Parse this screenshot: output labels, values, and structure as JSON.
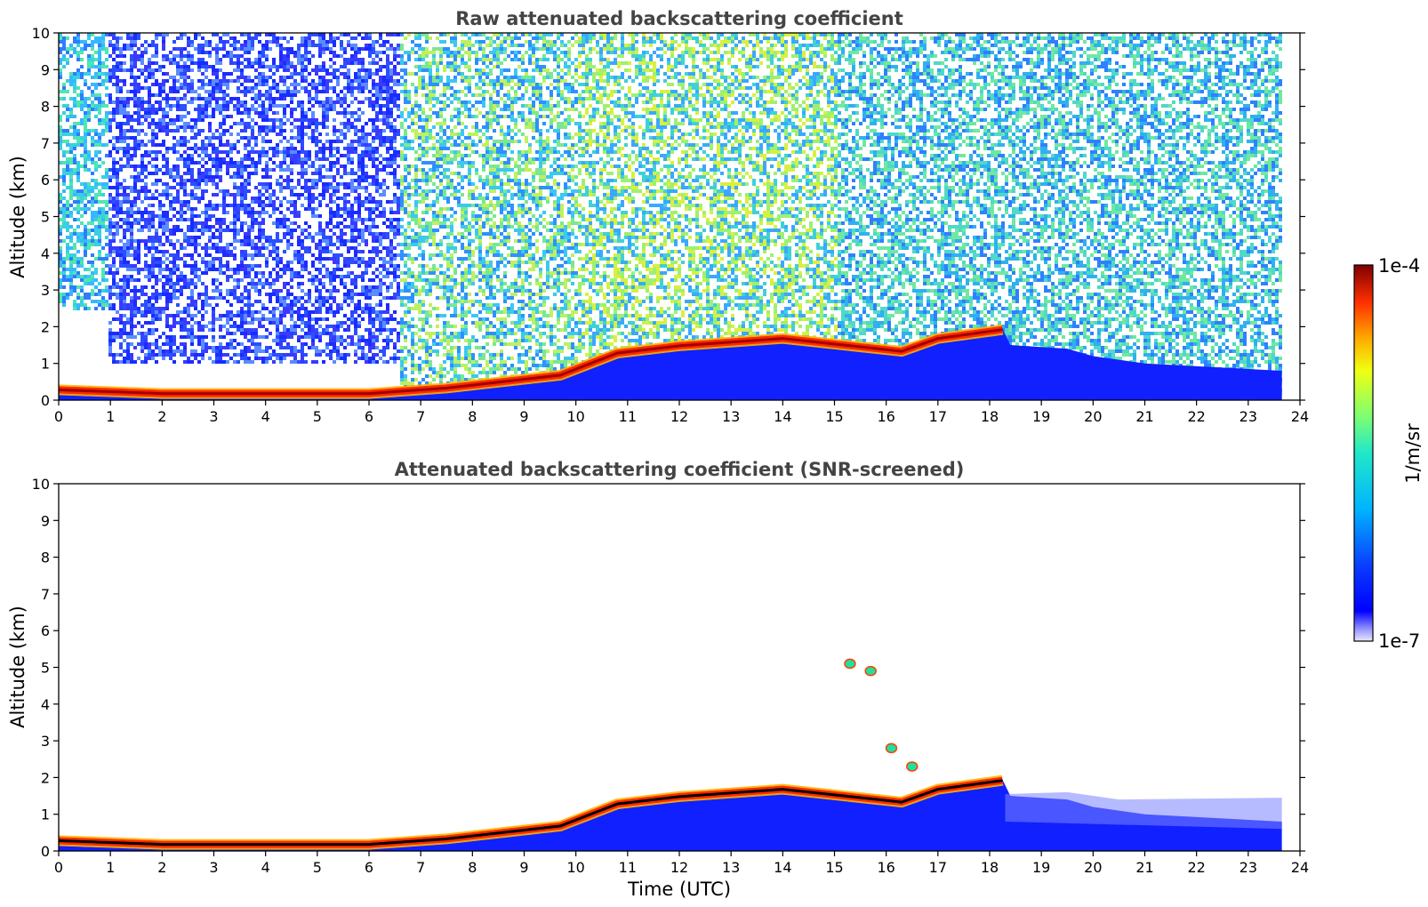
{
  "chart_data": [
    {
      "type": "heatmap",
      "title": "Raw attenuated backscattering coefficient",
      "xlabel": "",
      "ylabel": "Altitude (km)",
      "xlim": [
        0,
        24
      ],
      "ylim": [
        0,
        10
      ],
      "xticks": [
        0,
        1,
        2,
        3,
        4,
        5,
        6,
        7,
        8,
        9,
        10,
        11,
        12,
        13,
        14,
        15,
        16,
        17,
        18,
        19,
        20,
        21,
        22,
        23,
        24
      ],
      "yticks": [
        0,
        1,
        2,
        3,
        4,
        5,
        6,
        7,
        8,
        9,
        10
      ],
      "data_end_time": 23.65,
      "layer_top_km": [
        {
          "t": 0,
          "h": 0.3
        },
        {
          "t": 2,
          "h": 0.2
        },
        {
          "t": 6,
          "h": 0.2
        },
        {
          "t": 7.5,
          "h": 0.35
        },
        {
          "t": 9.7,
          "h": 0.7
        },
        {
          "t": 10.8,
          "h": 1.3
        },
        {
          "t": 12,
          "h": 1.5
        },
        {
          "t": 14,
          "h": 1.7
        },
        {
          "t": 16.3,
          "h": 1.35
        },
        {
          "t": 17,
          "h": 1.7
        },
        {
          "t": 18.3,
          "h": 1.95
        }
      ]
    },
    {
      "type": "heatmap",
      "title": "Attenuated backscattering coefficient (SNR-screened)",
      "xlabel": "Time (UTC)",
      "ylabel": "Altitude (km)",
      "xlim": [
        0,
        24
      ],
      "ylim": [
        0,
        10
      ],
      "xticks": [
        0,
        1,
        2,
        3,
        4,
        5,
        6,
        7,
        8,
        9,
        10,
        11,
        12,
        13,
        14,
        15,
        16,
        17,
        18,
        19,
        20,
        21,
        22,
        23,
        24
      ],
      "yticks": [
        0,
        1,
        2,
        3,
        4,
        5,
        6,
        7,
        8,
        9,
        10
      ],
      "data_end_time": 23.65,
      "clouds": [
        {
          "t": 15.3,
          "h": 5.1
        },
        {
          "t": 15.7,
          "h": 4.9
        },
        {
          "t": 16.1,
          "h": 2.8
        },
        {
          "t": 16.5,
          "h": 2.3
        }
      ]
    }
  ],
  "colorbar": {
    "label": "1/m/sr",
    "max_label": "1e-4",
    "min_label": "1e-7",
    "colormap": "jet",
    "scale": "log"
  }
}
